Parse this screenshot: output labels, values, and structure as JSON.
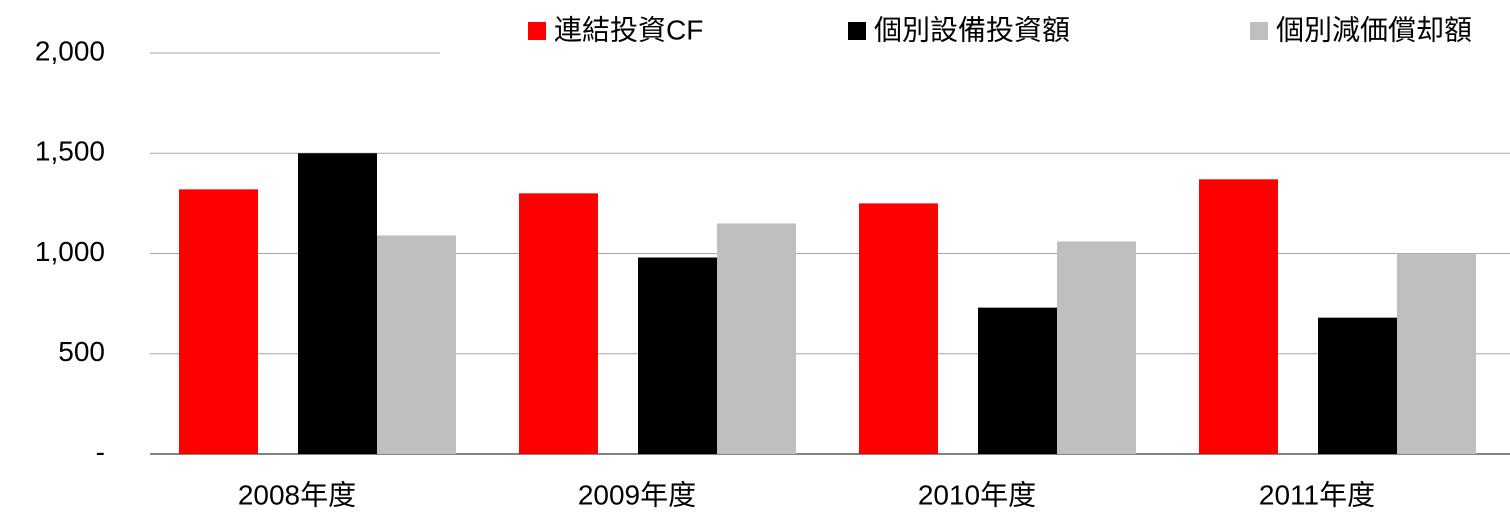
{
  "chart_data": {
    "type": "bar",
    "categories": [
      "2008年度",
      "2009年度",
      "2010年度",
      "2011年度"
    ],
    "series": [
      {
        "name": "連結投資CF",
        "color": "#ff0000",
        "values": [
          1320,
          1300,
          1250,
          1370
        ]
      },
      {
        "name": "個別設備投資額",
        "color": "#000000",
        "values": [
          1500,
          980,
          730,
          680
        ]
      },
      {
        "name": "個別減価償却額",
        "color": "#bfbfbf",
        "values": [
          1090,
          1150,
          1060,
          1000
        ]
      }
    ],
    "ylim": [
      0,
      2000
    ],
    "yticks": [
      {
        "value": 0,
        "label": "-"
      },
      500,
      {
        "value": 1000,
        "label": "1,000"
      },
      {
        "value": 1500,
        "label": "1,500"
      },
      {
        "value": 2000,
        "label": "2,000"
      }
    ],
    "grid": true,
    "legend": "top"
  }
}
